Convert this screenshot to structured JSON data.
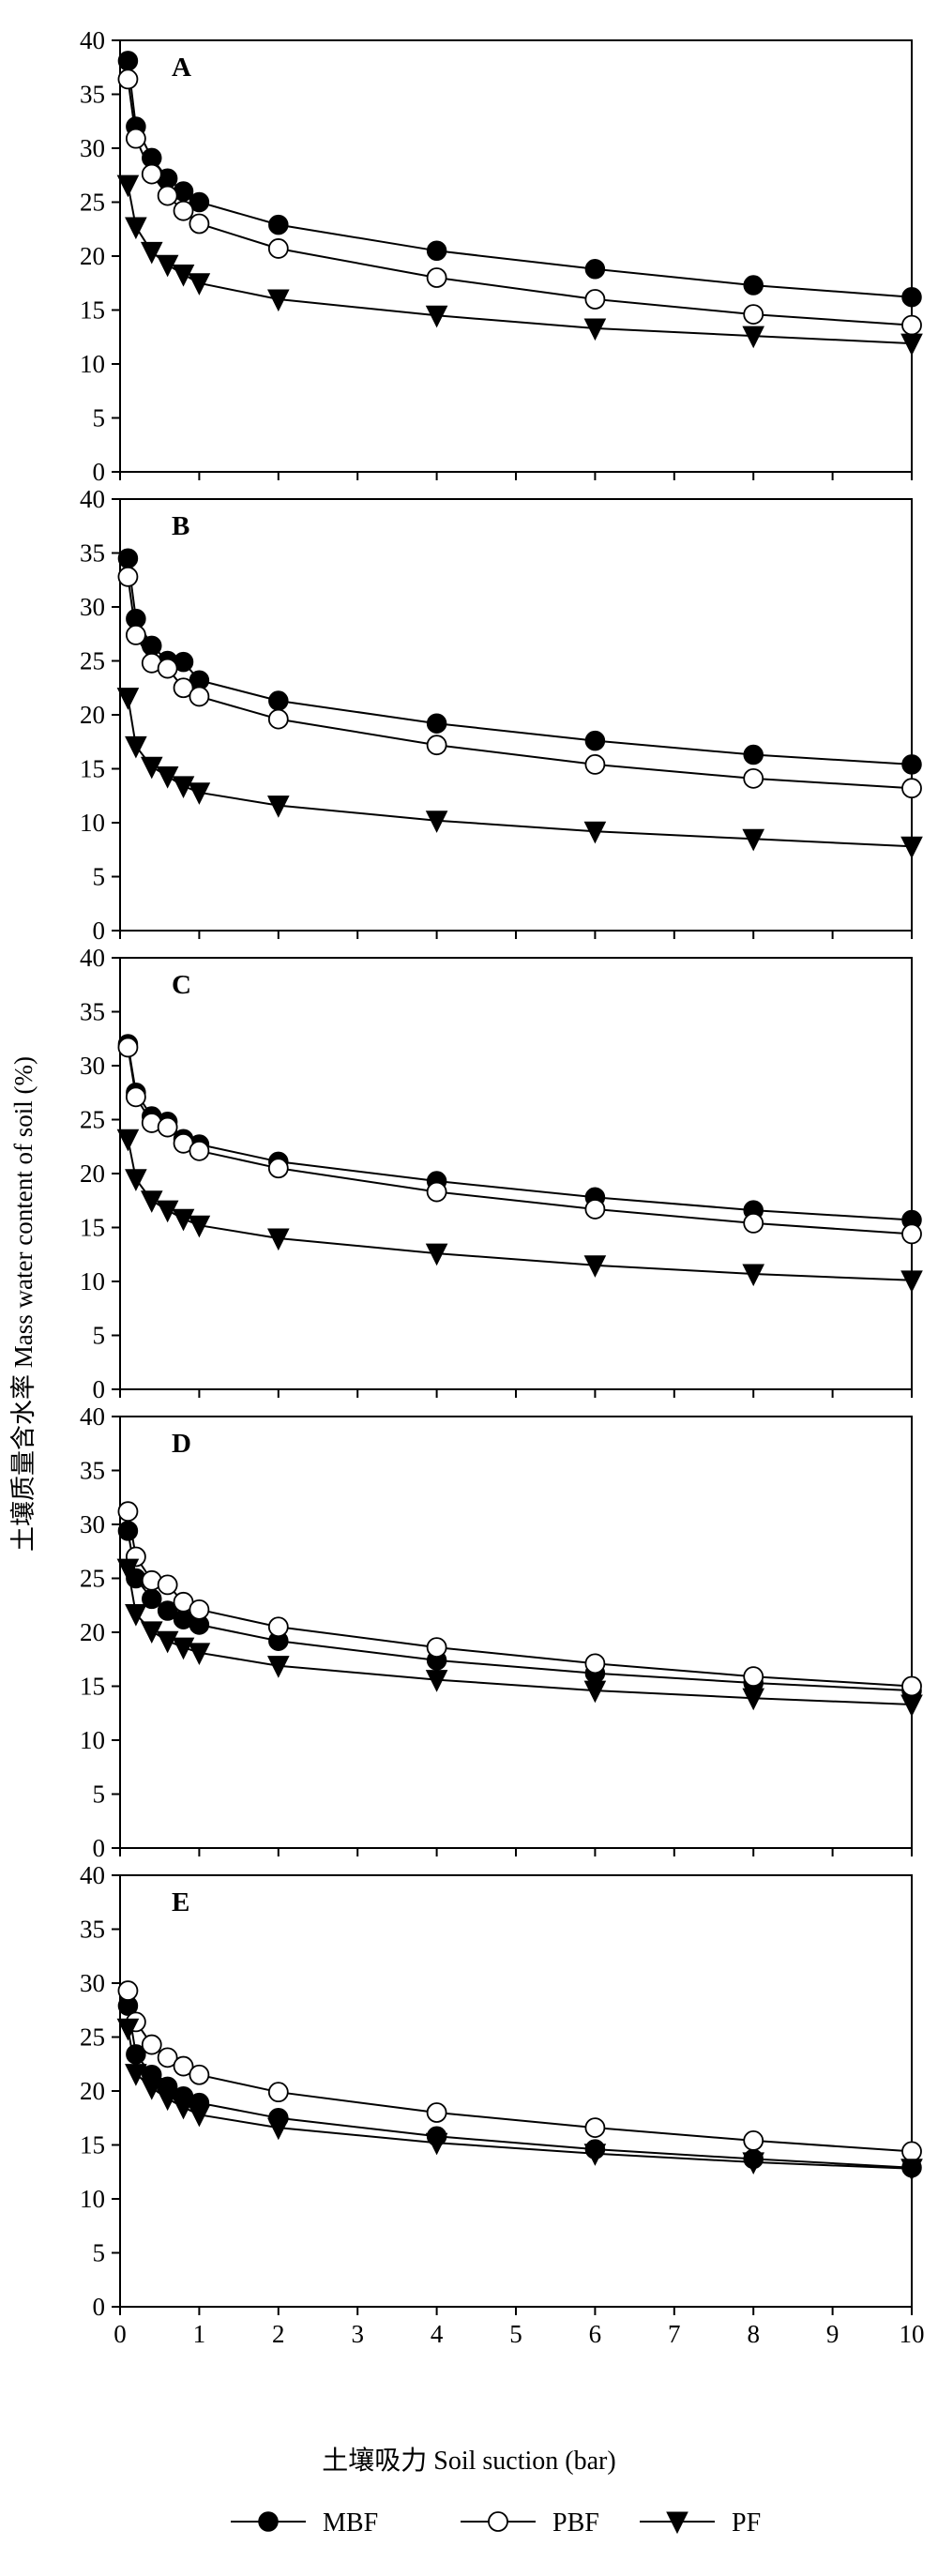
{
  "figure": {
    "ylabel": "土壤质量含水率 Mass water content of soil (%)",
    "xlabel": "土壤吸力 Soil suction (bar)",
    "legend": [
      {
        "name": "MBF",
        "marker": "filled-circle"
      },
      {
        "name": "PBF",
        "marker": "open-circle"
      },
      {
        "name": "PF",
        "marker": "filled-triangle-down"
      }
    ]
  },
  "chart_data": [
    {
      "type": "line",
      "panel_label": "A",
      "xlim": [
        0,
        10
      ],
      "ylim": [
        0,
        40
      ],
      "x_ticks": [
        0,
        1,
        2,
        3,
        4,
        5,
        6,
        7,
        8,
        9,
        10
      ],
      "y_ticks": [
        0,
        5,
        10,
        15,
        20,
        25,
        30,
        35,
        40
      ],
      "x": [
        0.1,
        0.2,
        0.4,
        0.6,
        0.8,
        1,
        2,
        4,
        6,
        8,
        10
      ],
      "series": [
        {
          "name": "MBF",
          "marker": "filled-circle",
          "values": [
            38.1,
            32.0,
            29.1,
            27.2,
            26.0,
            25.0,
            22.9,
            20.5,
            18.8,
            17.3,
            16.2
          ]
        },
        {
          "name": "PBF",
          "marker": "open-circle",
          "values": [
            36.4,
            30.9,
            27.6,
            25.6,
            24.2,
            23.0,
            20.7,
            18.0,
            16.0,
            14.6,
            13.6
          ]
        },
        {
          "name": "PF",
          "marker": "filled-triangle-down",
          "values": [
            26.6,
            22.7,
            20.4,
            19.2,
            18.3,
            17.5,
            16.0,
            14.5,
            13.3,
            12.6,
            11.9
          ]
        }
      ]
    },
    {
      "type": "line",
      "panel_label": "B",
      "xlim": [
        0,
        10
      ],
      "ylim": [
        0,
        40
      ],
      "x_ticks": [
        0,
        1,
        2,
        3,
        4,
        5,
        6,
        7,
        8,
        9,
        10
      ],
      "y_ticks": [
        0,
        5,
        10,
        15,
        20,
        25,
        30,
        35,
        40
      ],
      "x": [
        0.1,
        0.2,
        0.4,
        0.6,
        0.8,
        1,
        2,
        4,
        6,
        8,
        10
      ],
      "series": [
        {
          "name": "MBF",
          "marker": "filled-circle",
          "values": [
            34.5,
            28.9,
            26.4,
            25.0,
            24.9,
            23.2,
            21.3,
            19.2,
            17.6,
            16.3,
            15.4
          ]
        },
        {
          "name": "PBF",
          "marker": "open-circle",
          "values": [
            32.8,
            27.4,
            24.8,
            24.3,
            22.5,
            21.7,
            19.6,
            17.2,
            15.4,
            14.1,
            13.2
          ]
        },
        {
          "name": "PF",
          "marker": "filled-triangle-down",
          "values": [
            21.6,
            17.1,
            15.2,
            14.3,
            13.4,
            12.8,
            11.6,
            10.2,
            9.2,
            8.5,
            7.8
          ]
        }
      ]
    },
    {
      "type": "line",
      "panel_label": "C",
      "xlim": [
        0,
        10
      ],
      "ylim": [
        0,
        40
      ],
      "x_ticks": [
        0,
        1,
        2,
        3,
        4,
        5,
        6,
        7,
        8,
        9,
        10
      ],
      "y_ticks": [
        0,
        5,
        10,
        15,
        20,
        25,
        30,
        35,
        40
      ],
      "x": [
        0.1,
        0.2,
        0.4,
        0.6,
        0.8,
        1,
        2,
        4,
        6,
        8,
        10
      ],
      "series": [
        {
          "name": "MBF",
          "marker": "filled-circle",
          "values": [
            32.0,
            27.5,
            25.3,
            24.8,
            23.2,
            22.7,
            21.1,
            19.3,
            17.8,
            16.6,
            15.7
          ]
        },
        {
          "name": "PBF",
          "marker": "open-circle",
          "values": [
            31.7,
            27.1,
            24.7,
            24.3,
            22.8,
            22.1,
            20.5,
            18.3,
            16.7,
            15.4,
            14.4
          ]
        },
        {
          "name": "PF",
          "marker": "filled-triangle-down",
          "values": [
            23.2,
            19.5,
            17.5,
            16.6,
            15.8,
            15.2,
            14.0,
            12.6,
            11.5,
            10.7,
            10.1
          ]
        }
      ]
    },
    {
      "type": "line",
      "panel_label": "D",
      "xlim": [
        0,
        10
      ],
      "ylim": [
        0,
        40
      ],
      "x_ticks": [
        0,
        1,
        2,
        3,
        4,
        5,
        6,
        7,
        8,
        9,
        10
      ],
      "y_ticks": [
        0,
        5,
        10,
        15,
        20,
        25,
        30,
        35,
        40
      ],
      "x": [
        0.1,
        0.2,
        0.4,
        0.6,
        0.8,
        1,
        2,
        4,
        6,
        8,
        10
      ],
      "series": [
        {
          "name": "MBF",
          "marker": "filled-circle",
          "values": [
            29.4,
            25.0,
            23.1,
            22.0,
            21.2,
            20.7,
            19.2,
            17.4,
            16.2,
            15.3,
            14.6
          ]
        },
        {
          "name": "PBF",
          "marker": "open-circle",
          "values": [
            31.2,
            27.0,
            24.8,
            24.4,
            22.8,
            22.1,
            20.5,
            18.6,
            17.1,
            15.9,
            15.0
          ]
        },
        {
          "name": "PF",
          "marker": "filled-triangle-down",
          "values": [
            25.9,
            21.7,
            20.1,
            19.2,
            18.6,
            18.1,
            16.9,
            15.6,
            14.6,
            13.9,
            13.3
          ]
        }
      ]
    },
    {
      "type": "line",
      "panel_label": "E",
      "xlim": [
        0,
        10
      ],
      "ylim": [
        0,
        40
      ],
      "x_ticks": [
        0,
        1,
        2,
        3,
        4,
        5,
        6,
        7,
        8,
        9,
        10
      ],
      "y_ticks": [
        0,
        5,
        10,
        15,
        20,
        25,
        30,
        35,
        40
      ],
      "x": [
        0.1,
        0.2,
        0.4,
        0.6,
        0.8,
        1,
        2,
        4,
        6,
        8,
        10
      ],
      "series": [
        {
          "name": "MBF",
          "marker": "filled-circle",
          "values": [
            27.9,
            23.4,
            21.5,
            20.4,
            19.5,
            18.9,
            17.5,
            15.8,
            14.6,
            13.7,
            12.9
          ]
        },
        {
          "name": "PBF",
          "marker": "open-circle",
          "values": [
            29.3,
            26.4,
            24.3,
            23.1,
            22.3,
            21.5,
            19.9,
            18.0,
            16.6,
            15.4,
            14.4
          ]
        },
        {
          "name": "PF",
          "marker": "filled-triangle-down",
          "values": [
            25.8,
            21.6,
            20.3,
            19.3,
            18.5,
            17.8,
            16.6,
            15.2,
            14.2,
            13.4,
            12.8
          ]
        }
      ]
    }
  ]
}
